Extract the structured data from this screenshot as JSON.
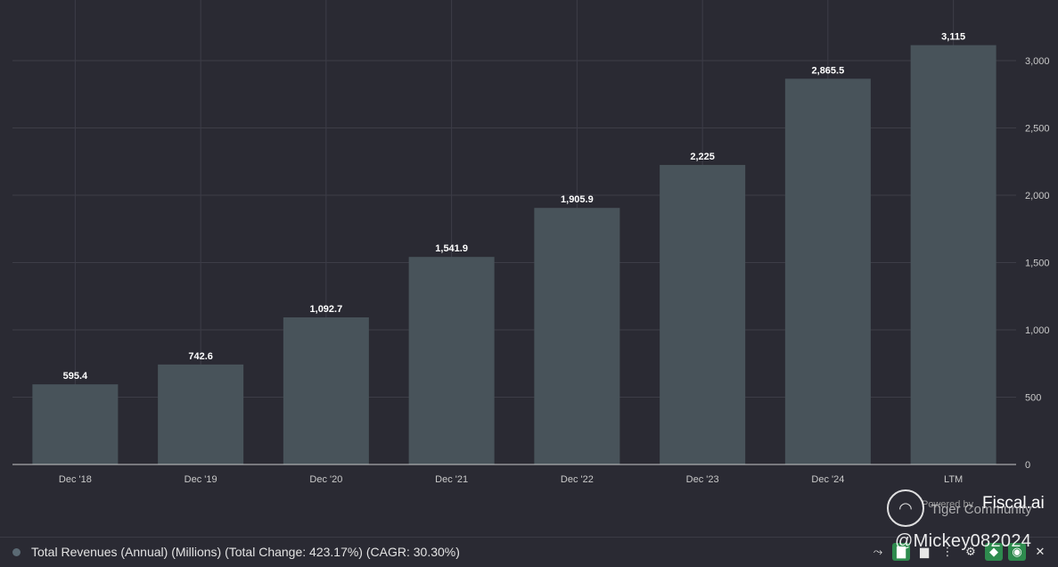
{
  "chart_data": {
    "type": "bar",
    "title": "",
    "xlabel": "",
    "ylabel": "",
    "categories": [
      "Dec '18",
      "Dec '19",
      "Dec '20",
      "Dec '21",
      "Dec '22",
      "Dec '23",
      "Dec '24",
      "LTM"
    ],
    "values": [
      595.4,
      742.6,
      1092.7,
      1541.9,
      1905.9,
      2225,
      2865.5,
      3115
    ],
    "value_labels": [
      "595.4",
      "742.6",
      "1,092.7",
      "1,541.9",
      "1,905.9",
      "2,225",
      "2,865.5",
      "3,115"
    ],
    "ylim": [
      0,
      3500
    ],
    "yticks": [
      0,
      500,
      1000,
      1500,
      2000,
      2500,
      3000
    ],
    "ytick_labels": [
      "0",
      "500",
      "1,000",
      "1,500",
      "2,000",
      "2,500",
      "3,000"
    ],
    "y_axis_side": "right",
    "grid": true,
    "colors": {
      "bar": "#48535a",
      "background": "#2a2a33",
      "grid": "#3d3d47"
    }
  },
  "legend": {
    "label": "Total Revenues (Annual) (Millions) (Total Change: 423.17%) (CAGR: 30.30%)"
  },
  "branding": {
    "powered_by": "Powered by",
    "name": "Fiscal.ai"
  },
  "watermark": {
    "community": "Tiger Community",
    "handle": "@Mickey082024"
  },
  "toolbar": {
    "icons": [
      "line-chart-icon",
      "bar-chart-icon",
      "column-chart-icon",
      "more-icon",
      "gear-icon",
      "tag-icon",
      "eye-icon",
      "close-icon"
    ]
  }
}
